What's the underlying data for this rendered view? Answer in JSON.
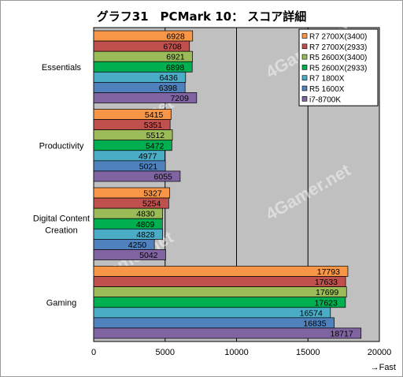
{
  "title": "グラフ31　PCMark 10： スコア詳細",
  "chart_data": {
    "type": "bar",
    "orientation": "horizontal",
    "categories": [
      "Essentials",
      "Productivity",
      "Digital Content\nCreation",
      "Gaming"
    ],
    "series": [
      {
        "name": "R7 2700X(3400)",
        "color": "#f79646",
        "values": [
          6928,
          5415,
          5327,
          17793
        ]
      },
      {
        "name": "R7 2700X(2933)",
        "color": "#c0504d",
        "values": [
          6708,
          5351,
          5254,
          17633
        ]
      },
      {
        "name": "R5 2600X(3400)",
        "color": "#9bbb59",
        "values": [
          6921,
          5512,
          4830,
          17699
        ]
      },
      {
        "name": "R5 2600X(2933)",
        "color": "#00b050",
        "values": [
          6898,
          5472,
          4809,
          17623
        ]
      },
      {
        "name": "R7 1800X",
        "color": "#4bacc6",
        "values": [
          6436,
          4977,
          4828,
          16574
        ]
      },
      {
        "name": "R5 1600X",
        "color": "#4f81bd",
        "values": [
          6398,
          5021,
          4250,
          16835
        ]
      },
      {
        "name": "i7-8700K",
        "color": "#8064a2",
        "values": [
          7209,
          6055,
          5042,
          18717
        ]
      }
    ],
    "xlim": [
      0,
      20000
    ],
    "xticks": [
      0,
      5000,
      10000,
      15000,
      20000
    ],
    "xlabel": "→Fast",
    "grid": true,
    "legend": "top-right",
    "watermark": "4Gamer.net"
  }
}
